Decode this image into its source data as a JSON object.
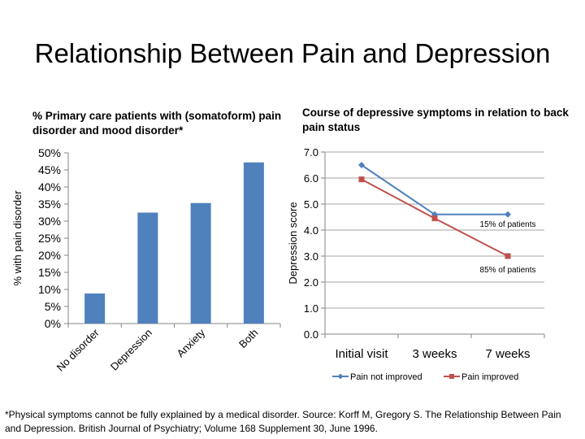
{
  "slide": {
    "title": "Relationship Between Pain and Depression",
    "footnote": "*Physical symptoms cannot be fully explained by a medical disorder. Source: Korff M, Gregory S. The Relationship Between Pain and Depression. British Journal of Psychiatry; Volume 168 Supplement 30, June 1996."
  },
  "colors": {
    "blue": "#4F81BD",
    "red": "#C0504D",
    "grid": "#A6A6A6"
  },
  "chart_data": [
    {
      "type": "bar",
      "title": "% Primary care patients with (somatoform) pain disorder and mood disorder*",
      "ylabel": "% with pain disorder",
      "xlabel": "",
      "categories": [
        "No disorder",
        "Depression",
        "Anxiety",
        "Both"
      ],
      "values": [
        8.8,
        32.5,
        35.3,
        47.2
      ],
      "ylim": [
        0,
        50
      ],
      "yticks": [
        "0%",
        "5%",
        "10%",
        "15%",
        "20%",
        "25%",
        "30%",
        "35%",
        "40%",
        "45%",
        "50%"
      ],
      "grid": false,
      "legend": "none"
    },
    {
      "type": "line",
      "title": "Course of depressive symptoms in relation to back pain status",
      "ylabel": "Depression score",
      "xlabel": "",
      "categories": [
        "Initial visit",
        "3 weeks",
        "7 weeks"
      ],
      "series": [
        {
          "name": "Pain not improved",
          "values": [
            6.5,
            4.6,
            4.6
          ],
          "marker": "diamond"
        },
        {
          "name": "Pain improved",
          "values": [
            5.95,
            4.45,
            3.0
          ],
          "marker": "square"
        }
      ],
      "annotations": [
        "15% of patients",
        "85% of patients"
      ],
      "ylim": [
        0,
        7
      ],
      "yticks": [
        "0.0",
        "1.0",
        "2.0",
        "3.0",
        "4.0",
        "5.0",
        "6.0",
        "7.0"
      ],
      "grid": true,
      "legend": "bottom"
    }
  ]
}
